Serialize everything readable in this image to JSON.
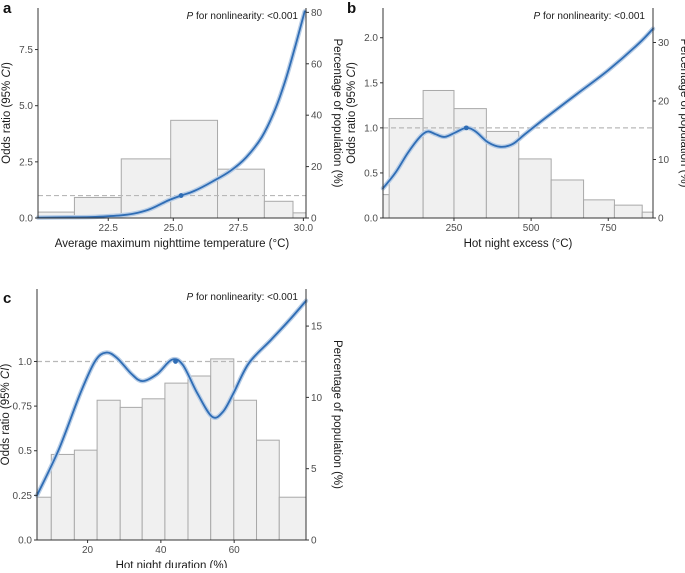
{
  "chart_data": [
    {
      "panel_label": "a",
      "type": "line",
      "secondary_type": "bar",
      "annotation_italic": "P",
      "annotation_rest": " for nonlinearity: <0.001",
      "xlabel": "Average maximum nighttime temperature (°C)",
      "ylabel_left_pre": "Odds ratio (95% ",
      "ylabel_left_italic": "CI",
      "ylabel_left_post": ")",
      "ylabel_right": "Percentage of population (%)",
      "xlim": [
        19.8,
        30.1
      ],
      "ylim": [
        0,
        9.35
      ],
      "ylim_right": [
        0,
        81.7
      ],
      "x_ticks": [
        {
          "v": 22.5,
          "label": "22.5"
        },
        {
          "v": 25.0,
          "label": "25.0"
        },
        {
          "v": 27.5,
          "label": "27.5"
        },
        {
          "v": 30.0,
          "label": "30.0"
        }
      ],
      "y_ticks": [
        {
          "v": 0,
          "label": "0.0"
        },
        {
          "v": 2.5,
          "label": "2.5"
        },
        {
          "v": 5.0,
          "label": "5.0"
        },
        {
          "v": 7.5,
          "label": "7.5"
        }
      ],
      "y2_ticks": [
        {
          "v": 0,
          "label": "0"
        },
        {
          "v": 20,
          "label": "20"
        },
        {
          "v": 40,
          "label": "40"
        },
        {
          "v": 60,
          "label": "60"
        },
        {
          "v": 80,
          "label": "80"
        }
      ],
      "reference_line": 1.0,
      "reference_point": {
        "x": 25.3,
        "y": 1.0
      },
      "bars": [
        {
          "x0": 19.8,
          "x1": 21.2,
          "value": 2.3
        },
        {
          "x0": 21.2,
          "x1": 23.0,
          "value": 8.0
        },
        {
          "x0": 23.0,
          "x1": 24.9,
          "value": 23.0
        },
        {
          "x0": 24.9,
          "x1": 26.7,
          "value": 38.0
        },
        {
          "x0": 26.7,
          "x1": 28.5,
          "value": 19.0
        },
        {
          "x0": 28.5,
          "x1": 29.6,
          "value": 6.5
        },
        {
          "x0": 29.6,
          "x1": 30.1,
          "value": 2.0
        }
      ],
      "curve": [
        [
          19.8,
          0.02
        ],
        [
          21.0,
          0.03
        ],
        [
          22.0,
          0.05
        ],
        [
          23.0,
          0.12
        ],
        [
          23.5,
          0.2
        ],
        [
          24.0,
          0.35
        ],
        [
          24.4,
          0.55
        ],
        [
          24.8,
          0.78
        ],
        [
          25.3,
          1.0
        ],
        [
          25.8,
          1.2
        ],
        [
          26.5,
          1.62
        ],
        [
          27.2,
          2.1
        ],
        [
          27.8,
          2.7
        ],
        [
          28.4,
          3.6
        ],
        [
          28.9,
          4.8
        ],
        [
          29.3,
          6.1
        ],
        [
          29.7,
          7.7
        ],
        [
          30.05,
          9.2
        ]
      ]
    },
    {
      "panel_label": "b",
      "type": "line",
      "secondary_type": "bar",
      "annotation_italic": "P",
      "annotation_rest": " for nonlinearity: <0.001",
      "xlabel": "Hot night excess (°C)",
      "ylabel_left_pre": "Odds ratio (95% ",
      "ylabel_left_italic": "CI",
      "ylabel_left_post": ")",
      "ylabel_right": "Percentage of population (%)",
      "xlim": [
        20,
        895
      ],
      "ylim": [
        0,
        2.33
      ],
      "ylim_right": [
        0,
        35.9
      ],
      "x_ticks": [
        {
          "v": 250,
          "label": "250"
        },
        {
          "v": 500,
          "label": "500"
        },
        {
          "v": 750,
          "label": "750"
        }
      ],
      "y_ticks": [
        {
          "v": 0,
          "label": "0.0"
        },
        {
          "v": 0.5,
          "label": "0.5"
        },
        {
          "v": 1.0,
          "label": "1.0"
        },
        {
          "v": 1.5,
          "label": "1.5"
        },
        {
          "v": 2.0,
          "label": "2.0"
        }
      ],
      "y2_ticks": [
        {
          "v": 0,
          "label": "0"
        },
        {
          "v": 10,
          "label": "10"
        },
        {
          "v": 20,
          "label": "20"
        },
        {
          "v": 30,
          "label": "30"
        }
      ],
      "reference_line": 1.0,
      "reference_point": {
        "x": 290,
        "y": 1.0
      },
      "bars": [
        {
          "x0": 20,
          "x1": 40,
          "value": 4.0
        },
        {
          "x0": 40,
          "x1": 150,
          "value": 17.0
        },
        {
          "x0": 150,
          "x1": 250,
          "value": 21.8
        },
        {
          "x0": 250,
          "x1": 355,
          "value": 18.7
        },
        {
          "x0": 355,
          "x1": 460,
          "value": 14.8
        },
        {
          "x0": 460,
          "x1": 565,
          "value": 10.1
        },
        {
          "x0": 565,
          "x1": 670,
          "value": 6.5
        },
        {
          "x0": 670,
          "x1": 770,
          "value": 3.1
        },
        {
          "x0": 770,
          "x1": 860,
          "value": 2.2
        },
        {
          "x0": 860,
          "x1": 895,
          "value": 1.0
        }
      ],
      "curve": [
        [
          20,
          0.33
        ],
        [
          60,
          0.5
        ],
        [
          100,
          0.72
        ],
        [
          140,
          0.9
        ],
        [
          165,
          0.96
        ],
        [
          190,
          0.93
        ],
        [
          220,
          0.9
        ],
        [
          255,
          0.95
        ],
        [
          290,
          1.0
        ],
        [
          320,
          0.96
        ],
        [
          360,
          0.84
        ],
        [
          400,
          0.79
        ],
        [
          440,
          0.82
        ],
        [
          480,
          0.93
        ],
        [
          550,
          1.12
        ],
        [
          650,
          1.38
        ],
        [
          750,
          1.64
        ],
        [
          850,
          1.94
        ],
        [
          895,
          2.1
        ]
      ]
    },
    {
      "panel_label": "c",
      "type": "line",
      "secondary_type": "bar",
      "annotation_italic": "P",
      "annotation_rest": " for nonlinearity: <0.001",
      "xlabel": "Hot night duration (%)",
      "ylabel_left_pre": "Odds ratio (95% ",
      "ylabel_left_italic": "CI",
      "ylabel_left_post": ")",
      "ylabel_right": "Percentage of population (%)",
      "xlim": [
        6.2,
        79.6
      ],
      "ylim": [
        0,
        1.406
      ],
      "ylim_right": [
        0,
        17.6
      ],
      "x_ticks": [
        {
          "v": 20,
          "label": "20"
        },
        {
          "v": 40,
          "label": "40"
        },
        {
          "v": 60,
          "label": "60"
        }
      ],
      "y_ticks": [
        {
          "v": 0,
          "label": "0.0"
        },
        {
          "v": 0.25,
          "label": "0.25"
        },
        {
          "v": 0.5,
          "label": "0.5"
        },
        {
          "v": 0.75,
          "label": "0.75"
        },
        {
          "v": 1.0,
          "label": "1.0"
        }
      ],
      "y2_ticks": [
        {
          "v": 0,
          "label": "0"
        },
        {
          "v": 5,
          "label": "5"
        },
        {
          "v": 10,
          "label": "10"
        },
        {
          "v": 15,
          "label": "15"
        }
      ],
      "reference_line": 1.0,
      "reference_point": {
        "x": 44,
        "y": 1.0
      },
      "bars": [
        {
          "x0": 6.2,
          "x1": 10.1,
          "value": 3.0
        },
        {
          "x0": 10.1,
          "x1": 16.4,
          "value": 6.0
        },
        {
          "x0": 16.4,
          "x1": 22.6,
          "value": 6.3
        },
        {
          "x0": 22.6,
          "x1": 28.9,
          "value": 9.8
        },
        {
          "x0": 28.9,
          "x1": 34.9,
          "value": 9.3
        },
        {
          "x0": 34.9,
          "x1": 41.1,
          "value": 9.9
        },
        {
          "x0": 41.1,
          "x1": 47.4,
          "value": 11.0
        },
        {
          "x0": 47.4,
          "x1": 53.6,
          "value": 11.5
        },
        {
          "x0": 53.6,
          "x1": 59.9,
          "value": 12.7
        },
        {
          "x0": 59.9,
          "x1": 66.1,
          "value": 9.8
        },
        {
          "x0": 66.1,
          "x1": 72.3,
          "value": 7.0
        },
        {
          "x0": 72.3,
          "x1": 79.6,
          "value": 3.0
        }
      ],
      "curve": [
        [
          6.2,
          0.25
        ],
        [
          12,
          0.5
        ],
        [
          18,
          0.82
        ],
        [
          22,
          1.0
        ],
        [
          25,
          1.05
        ],
        [
          28,
          1.02
        ],
        [
          32,
          0.93
        ],
        [
          35,
          0.89
        ],
        [
          39,
          0.93
        ],
        [
          43,
          1.01
        ],
        [
          46,
          0.98
        ],
        [
          50,
          0.82
        ],
        [
          54,
          0.69
        ],
        [
          57,
          0.72
        ],
        [
          60,
          0.83
        ],
        [
          64,
          0.99
        ],
        [
          70,
          1.12
        ],
        [
          75,
          1.23
        ],
        [
          79.6,
          1.34
        ]
      ]
    }
  ]
}
